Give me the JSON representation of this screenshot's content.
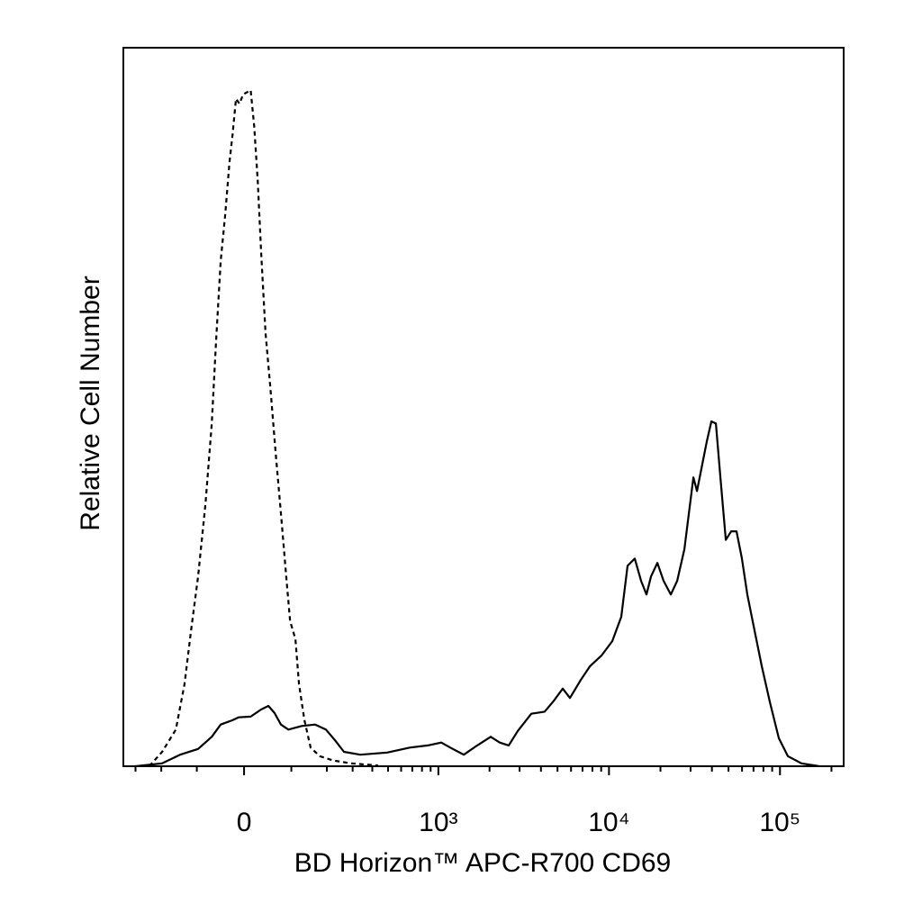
{
  "chart_data": {
    "type": "line",
    "xlabel": "BD Horizon™ APC-R700 CD69",
    "ylabel": "Relative Cell Number",
    "xscale": "arcsinh",
    "xlim": [
      -359,
      235700
    ],
    "ylim": [
      0,
      100
    ],
    "xticks": [
      0,
      {
        "value": 1000,
        "label": "10³"
      },
      {
        "value": 10000,
        "label": "10⁴"
      },
      {
        "value": 100000,
        "label": "10⁵"
      }
    ],
    "xminor_ticks": [
      -300,
      -200,
      -100,
      100,
      200,
      300,
      400,
      500,
      600,
      700,
      800,
      900,
      2000,
      3000,
      4000,
      5000,
      6000,
      7000,
      8000,
      9000,
      20000,
      30000,
      40000,
      50000,
      60000,
      70000,
      80000,
      90000,
      200000
    ],
    "series": [
      {
        "color": "#000000",
        "dashed": true,
        "x": [
          -243,
          -197,
          -155,
          -131,
          -114,
          -97,
          -80,
          -66,
          -57,
          -47,
          -38,
          -29,
          -23,
          -16,
          -9,
          -2,
          13,
          20,
          27,
          34,
          43,
          53,
          64,
          76,
          88,
          97,
          110,
          119,
          133,
          150,
          177,
          222,
          293,
          434
        ],
        "values": [
          0,
          2.0,
          5.1,
          11.4,
          18.9,
          26.4,
          36.5,
          47.7,
          59.0,
          70.3,
          76.6,
          84.1,
          87.8,
          92.9,
          92.2,
          93.5,
          94.1,
          89.1,
          81.6,
          71.6,
          60.3,
          52.8,
          44.0,
          35.2,
          26.4,
          20.2,
          17.7,
          11.4,
          6.4,
          2.6,
          1.4,
          0.8,
          0.4,
          0.1
        ]
      },
      {
        "color": "#000000",
        "dashed": false,
        "x": [
          -300,
          -197,
          -143,
          -97,
          -66,
          -47,
          -23,
          -11,
          13,
          34,
          49,
          62,
          76,
          93,
          126,
          163,
          197,
          229,
          263,
          336,
          494,
          676,
          866,
          1041,
          1176,
          1412,
          1694,
          2033,
          2295,
          2592,
          2925,
          3513,
          4204,
          4755,
          5366,
          5909,
          6836,
          7732,
          9041,
          10450,
          11800,
          12850,
          14160,
          15400,
          16570,
          17610,
          19180,
          20870,
          23000,
          25050,
          27600,
          29330,
          31150,
          32710,
          35180,
          37350,
          39690,
          42190,
          44810,
          48190,
          51820,
          55710,
          59920,
          64440,
          71000,
          78280,
          87320,
          98490,
          111100,
          133300,
          169900
        ],
        "values": [
          0,
          0.4,
          1.6,
          2.4,
          4.1,
          5.8,
          6.4,
          6.8,
          6.9,
          7.9,
          8.4,
          7.4,
          5.8,
          5.1,
          5.6,
          5.8,
          5.1,
          3.6,
          2.0,
          1.6,
          1.9,
          2.6,
          2.9,
          3.3,
          2.6,
          1.6,
          2.9,
          4.1,
          3.3,
          2.9,
          4.9,
          7.3,
          7.6,
          9.1,
          10.8,
          9.5,
          12.0,
          13.9,
          15.4,
          17.4,
          20.8,
          27.9,
          28.9,
          25.8,
          23.9,
          26.4,
          28.3,
          25.8,
          23.9,
          25.8,
          30.2,
          35.2,
          40.2,
          38.3,
          42.1,
          45.2,
          48.0,
          47.7,
          40.2,
          31.5,
          32.7,
          32.7,
          28.9,
          23.9,
          18.9,
          13.9,
          8.9,
          3.9,
          1.4,
          0.4,
          0
        ]
      }
    ]
  }
}
